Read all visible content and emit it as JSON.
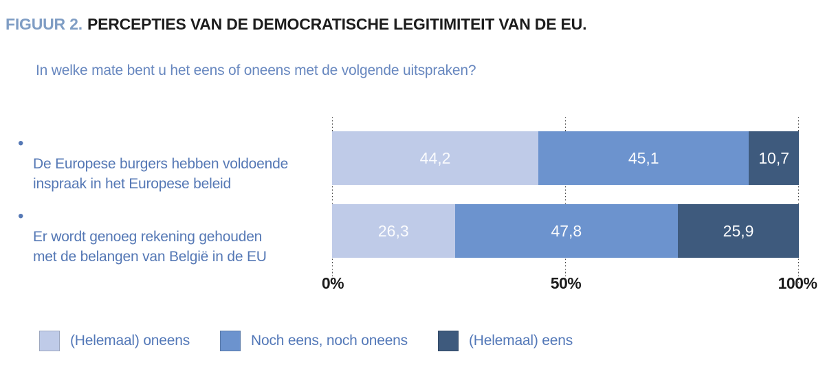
{
  "figure": {
    "label": "FIGUUR 2.",
    "title": "PERCEPTIES VAN DE DEMOCRATISCHE LEGITIMITEIT VAN DE EU.",
    "question": "In welke mate bent u het eens of oneens met de volgende uitspraken?"
  },
  "colors": {
    "figure_label": "#7f9dc4",
    "title_text": "#1c1c1c",
    "question_text": "#6787bf",
    "statement_text": "#5578b5",
    "legend_text": "#5378b8",
    "axis_text": "#1c1c1c",
    "gridline": "#4f4f4f",
    "value_label_text": "#fafbfd"
  },
  "chart_data": {
    "type": "bar",
    "orientation": "horizontal",
    "stacked": true,
    "unit": "percent",
    "xlim": [
      0,
      100
    ],
    "x_ticks": [
      "0%",
      "50%",
      "100%"
    ],
    "grid": "dotted vertical lines at 0, 50 and 100",
    "legend_position": "bottom",
    "categories": [
      "De Europese burgers hebben voldoende inspraak in het Europese beleid",
      "Er wordt genoeg rekening gehouden met de belangen van België in de EU"
    ],
    "label_lines": [
      [
        "De Europese burgers hebben voldoende",
        "inspraak in het Europese beleid"
      ],
      [
        "Er wordt genoeg rekening gehouden",
        "met de belangen van België in de EU"
      ]
    ],
    "series": [
      {
        "name": "(Helemaal) oneens",
        "color": "#bfcbe8",
        "values": [
          44.2,
          26.3
        ]
      },
      {
        "name": "Noch eens, noch oneens",
        "color": "#6c93ce",
        "values": [
          45.1,
          47.8
        ]
      },
      {
        "name": "(Helemaal) eens",
        "color": "#3e5a7d",
        "values": [
          10.7,
          25.9
        ]
      }
    ],
    "value_labels": [
      [
        "44,2",
        "45,1",
        "10,7"
      ],
      [
        "26,3",
        "47,8",
        "25,9"
      ]
    ]
  }
}
